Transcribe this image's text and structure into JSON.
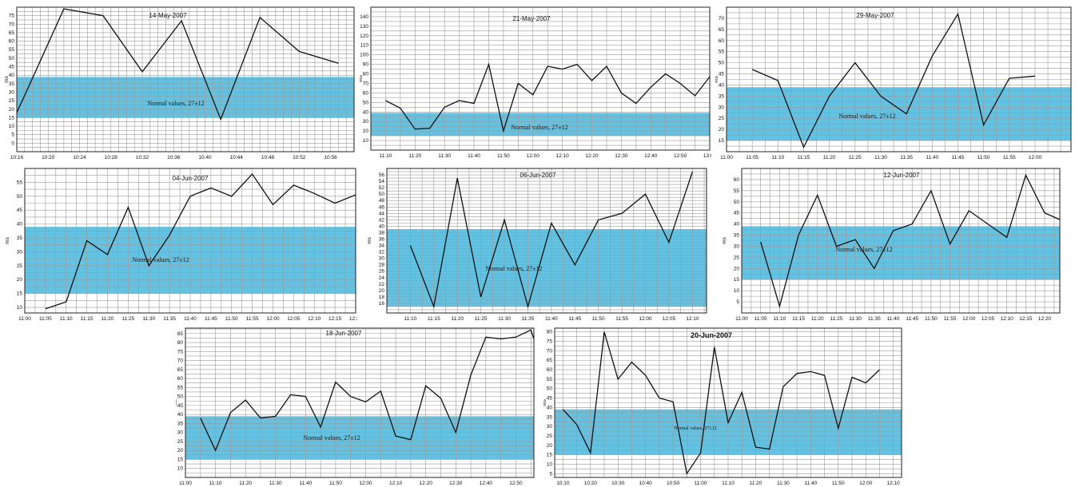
{
  "chart_data": [
    {
      "type": "line",
      "title": "14-May-2007",
      "ylabel": "ms",
      "band": {
        "label": "Normal values, 27±12",
        "low": 15,
        "high": 39
      },
      "xlim": [
        "10:16",
        "10:59"
      ],
      "ylim": [
        -5,
        80
      ],
      "xticks": [
        "10:16",
        "10:20",
        "10:24",
        "10:28",
        "10:32",
        "10:36",
        "10:40",
        "10:44",
        "10:48",
        "10:52",
        "10:56"
      ],
      "yticks": [
        0,
        5,
        10,
        15,
        20,
        25,
        30,
        35,
        40,
        45,
        50,
        55,
        60,
        65,
        70,
        75
      ],
      "x": [
        "10:16",
        "10:17",
        "10:22",
        "10:27",
        "10:32",
        "10:37",
        "10:42",
        "10:47",
        "10:52",
        "10:57"
      ],
      "y": [
        18,
        28,
        79,
        75,
        42,
        72,
        14,
        74,
        54,
        47
      ]
    },
    {
      "type": "line",
      "title": "21-May-2007",
      "ylabel": "ms",
      "band": {
        "label": "Normal values, 27±12",
        "low": 15,
        "high": 39
      },
      "xlim": [
        "11:05",
        "13:00"
      ],
      "ylim": [
        0,
        150
      ],
      "xticks": [
        "11:10",
        "11:20",
        "11:30",
        "11:40",
        "11:50",
        "12:00",
        "12:10",
        "12:20",
        "12:30",
        "12:40",
        "12:50",
        "13:00"
      ],
      "yticks": [
        10,
        20,
        30,
        40,
        50,
        60,
        70,
        80,
        90,
        100,
        110,
        120,
        130,
        140
      ],
      "x": [
        "11:10",
        "11:15",
        "11:20",
        "11:25",
        "11:30",
        "11:35",
        "11:40",
        "11:45",
        "11:50",
        "11:55",
        "12:00",
        "12:05",
        "12:10",
        "12:15",
        "12:20",
        "12:25",
        "12:30",
        "12:35",
        "12:40",
        "12:45",
        "12:50",
        "12:55",
        "13:00"
      ],
      "y": [
        52,
        44,
        22,
        23,
        45,
        52,
        49,
        90,
        20,
        70,
        58,
        88,
        85,
        90,
        73,
        88,
        60,
        49,
        66,
        80,
        70,
        57,
        77
      ]
    },
    {
      "type": "line",
      "title": "29-May-2007",
      "ylabel": "ms",
      "band": {
        "label": "Normal values, 27±12",
        "low": 15,
        "high": 39
      },
      "xlim": [
        "11:00",
        "12:07"
      ],
      "ylim": [
        10,
        75
      ],
      "xticks": [
        "11:00",
        "11:05",
        "11:10",
        "11:15",
        "11:20",
        "11:25",
        "11:30",
        "11:35",
        "11:40",
        "11:45",
        "11:50",
        "11:55",
        "12:00"
      ],
      "yticks": [
        15,
        20,
        25,
        30,
        35,
        40,
        45,
        50,
        55,
        60,
        65,
        70
      ],
      "x": [
        "11:05",
        "11:10",
        "11:15",
        "11:20",
        "11:25",
        "11:30",
        "11:35",
        "11:40",
        "11:45",
        "11:50",
        "11:55",
        "12:00"
      ],
      "y": [
        47,
        42,
        12,
        35,
        50,
        35,
        27,
        53,
        72,
        22,
        43,
        44
      ]
    },
    {
      "type": "line",
      "title": "04-Jun-2007",
      "ylabel": "ms",
      "band": {
        "label": "Normal values, 27±12",
        "low": 15,
        "high": 39
      },
      "xlim": [
        "11:00",
        "12:20"
      ],
      "ylim": [
        8,
        60
      ],
      "xticks": [
        "11:00",
        "11:05",
        "11:10",
        "11:15",
        "11:20",
        "11:25",
        "11:30",
        "11:35",
        "11:40",
        "11:45",
        "11:50",
        "11:55",
        "12:00",
        "12:05",
        "12:10",
        "12:15",
        "12:20"
      ],
      "yticks": [
        10,
        15,
        20,
        25,
        30,
        35,
        40,
        45,
        50,
        55
      ],
      "x": [
        "11:05",
        "11:10",
        "11:15",
        "11:20",
        "11:25",
        "11:30",
        "11:35",
        "11:40",
        "11:45",
        "11:50",
        "11:55",
        "12:00",
        "12:05",
        "12:10",
        "12:15",
        "12:20"
      ],
      "y": [
        9.5,
        12,
        34,
        29,
        46,
        25,
        36,
        50,
        53,
        50,
        58,
        47,
        54,
        51,
        47.5,
        50.5
      ]
    },
    {
      "type": "line",
      "title": "06-Jun-2007",
      "ylabel": "ms",
      "band": {
        "label": "Normal values, 27±12",
        "low": 15,
        "high": 39
      },
      "xlim": [
        "11:05",
        "12:13"
      ],
      "ylim": [
        13,
        58
      ],
      "xticks": [
        "11:10",
        "11:15",
        "11:20",
        "11:25",
        "11:30",
        "11:35",
        "11:40",
        "11:45",
        "11:50",
        "11:55",
        "12:00",
        "12:05",
        "12:10"
      ],
      "yticks": [
        16,
        18,
        20,
        22,
        24,
        26,
        28,
        30,
        32,
        34,
        36,
        38,
        40,
        42,
        44,
        46,
        48,
        50,
        52,
        54,
        56
      ],
      "x": [
        "11:10",
        "11:15",
        "11:20",
        "11:25",
        "11:30",
        "11:35",
        "11:40",
        "11:45",
        "11:50",
        "11:55",
        "12:00",
        "12:05",
        "12:10"
      ],
      "y": [
        34,
        15,
        55,
        18,
        42,
        15,
        41,
        28,
        42,
        44,
        50,
        35,
        57
      ]
    },
    {
      "type": "line",
      "title": "12-Jun-2007",
      "ylabel": "ms",
      "band": {
        "label": "Normal values, 27±12",
        "low": 15,
        "high": 39
      },
      "xlim": [
        "11:00",
        "12:24"
      ],
      "ylim": [
        0,
        65
      ],
      "xticks": [
        "11:00",
        "11:05",
        "11:10",
        "11:15",
        "11:20",
        "11:25",
        "11:30",
        "11:35",
        "11:40",
        "11:45",
        "11:50",
        "11:55",
        "12:00",
        "12:05",
        "12:10",
        "12:15",
        "12:20"
      ],
      "yticks": [
        5,
        10,
        15,
        20,
        25,
        30,
        35,
        40,
        45,
        50,
        55,
        60
      ],
      "x": [
        "11:05",
        "11:10",
        "11:15",
        "11:20",
        "11:25",
        "11:30",
        "11:35",
        "11:40",
        "11:45",
        "11:50",
        "11:55",
        "12:00",
        "12:05",
        "12:10",
        "12:15",
        "12:20",
        "12:24"
      ],
      "y": [
        32,
        3,
        35,
        53,
        30,
        33,
        20,
        37,
        40,
        55,
        31,
        46,
        40,
        34,
        62,
        45,
        42
      ]
    },
    {
      "type": "line",
      "title": "18-Jun-2007",
      "ylabel": "ms",
      "band": {
        "label": "Normal values, 27±12",
        "low": 15,
        "high": 39
      },
      "xlim": [
        "11:00",
        "12:56"
      ],
      "ylim": [
        5,
        88
      ],
      "xticks": [
        "11:00",
        "11:10",
        "11:20",
        "11:30",
        "11:40",
        "11:50",
        "12:00",
        "12:10",
        "12:20",
        "12:30",
        "12:40",
        "12:50"
      ],
      "yticks": [
        10,
        15,
        20,
        25,
        30,
        35,
        40,
        45,
        50,
        55,
        60,
        65,
        70,
        75,
        80,
        85
      ],
      "x": [
        "11:05",
        "11:10",
        "11:15",
        "11:20",
        "11:25",
        "11:30",
        "11:35",
        "11:40",
        "11:45",
        "11:50",
        "11:55",
        "12:00",
        "12:05",
        "12:10",
        "12:15",
        "12:20",
        "12:25",
        "12:30",
        "12:35",
        "12:40",
        "12:45",
        "12:50",
        "12:55",
        "12:56"
      ],
      "y": [
        38,
        20,
        41,
        48,
        38,
        39,
        51,
        50,
        33,
        58,
        50,
        47,
        53,
        28,
        26,
        56,
        49,
        30,
        62,
        83,
        82,
        83,
        87,
        82
      ]
    },
    {
      "type": "line",
      "title": "20-Jun-2007",
      "ylabel": "ms",
      "band": {
        "label": "Normal values, 27±12",
        "low": 15,
        "high": 39
      },
      "xlim": [
        "10:07",
        "12:13"
      ],
      "ylim": [
        3,
        82
      ],
      "xticks": [
        "10:10",
        "10:20",
        "10:30",
        "10:40",
        "10:50",
        "11:00",
        "11:10",
        "11:20",
        "11:30",
        "11:40",
        "11:50",
        "12:00",
        "12:10"
      ],
      "yticks": [
        5,
        10,
        15,
        20,
        25,
        30,
        35,
        40,
        45,
        50,
        55,
        60,
        65,
        70,
        75,
        80
      ],
      "x": [
        "10:10",
        "10:15",
        "10:20",
        "10:25",
        "10:30",
        "10:35",
        "10:40",
        "10:45",
        "10:50",
        "10:55",
        "11:00",
        "11:05",
        "11:10",
        "11:15",
        "11:20",
        "11:25",
        "11:30",
        "11:35",
        "11:40",
        "11:45",
        "11:50",
        "11:55",
        "12:00",
        "12:05"
      ],
      "y": [
        39,
        31,
        16,
        80,
        55,
        64,
        57,
        45,
        43,
        5,
        16,
        72,
        32,
        48,
        19,
        18,
        51,
        58,
        59,
        57,
        29,
        56,
        53,
        60
      ]
    }
  ]
}
